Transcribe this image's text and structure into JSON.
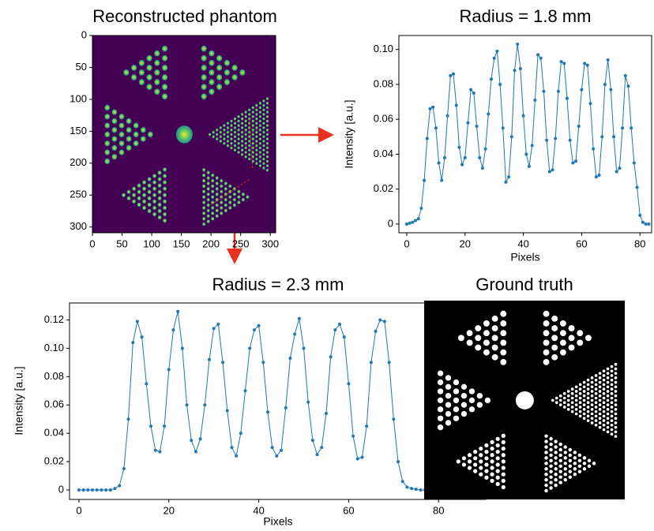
{
  "chart_data": [
    {
      "type": "image",
      "title": "Reconstructed phantom",
      "colormap": "viridis",
      "xlim": [
        0,
        309
      ],
      "ylim": [
        309,
        0
      ],
      "xticks": [
        0,
        50,
        100,
        150,
        200,
        250,
        300
      ],
      "yticks": [
        0,
        50,
        100,
        150,
        200,
        250,
        300
      ]
    },
    {
      "type": "line",
      "title": "Radius = 1.8 mm",
      "xlabel": "Pixels",
      "ylabel": "Intensity [a.u.]",
      "xlim": [
        -2.7,
        84
      ],
      "ylim": [
        -0.005,
        0.108
      ],
      "xticks": [
        0,
        20,
        40,
        60,
        80
      ],
      "yticks": [
        0,
        0.02,
        0.04,
        0.06,
        0.08,
        {
          "value": 0.1,
          "label": "0.10"
        }
      ],
      "series": [
        {
          "color": "#1f77b4",
          "x": [
            0,
            1,
            2,
            3,
            4,
            5,
            6,
            7,
            8,
            9,
            10,
            11,
            12,
            13,
            14,
            15,
            16,
            17,
            18,
            19,
            20,
            21,
            22,
            23,
            24,
            25,
            26,
            27,
            28,
            29,
            30,
            31,
            32,
            33,
            34,
            35,
            36,
            37,
            38,
            39,
            40,
            41,
            42,
            43,
            44,
            45,
            46,
            47,
            48,
            49,
            50,
            51,
            52,
            53,
            54,
            55,
            56,
            57,
            58,
            59,
            60,
            61,
            62,
            63,
            64,
            65,
            66,
            67,
            68,
            69,
            70,
            71,
            72,
            73,
            74,
            75,
            76,
            77,
            78,
            79,
            80,
            81,
            82,
            83
          ],
          "values": [
            0,
            0.0005,
            0.001,
            0.002,
            0.003,
            0.009,
            0.025,
            0.049,
            0.066,
            0.067,
            0.055,
            0.035,
            0.025,
            0.038,
            0.062,
            0.085,
            0.086,
            0.068,
            0.044,
            0.034,
            0.038,
            0.058,
            0.077,
            0.075,
            0.056,
            0.038,
            0.032,
            0.043,
            0.063,
            0.083,
            0.095,
            0.099,
            0.08,
            0.055,
            0.024,
            0.027,
            0.05,
            0.088,
            0.103,
            0.089,
            0.062,
            0.04,
            0.033,
            0.045,
            0.071,
            0.097,
            0.095,
            0.076,
            0.048,
            0.03,
            0.031,
            0.049,
            0.076,
            0.093,
            0.092,
            0.072,
            0.048,
            0.035,
            0.036,
            0.056,
            0.077,
            0.092,
            0.091,
            0.069,
            0.043,
            0.027,
            0.028,
            0.05,
            0.08,
            0.094,
            0.077,
            0.05,
            0.03,
            0.032,
            0.055,
            0.085,
            0.079,
            0.055,
            0.035,
            0.021,
            0.005,
            0.001,
            0,
            0
          ]
        }
      ]
    },
    {
      "type": "line",
      "title": "Radius = 2.3 mm",
      "xlabel": "Pixels",
      "ylabel": "Intensity [a.u.]",
      "xlim": [
        -2.1,
        90.5
      ],
      "ylim": [
        -0.0067,
        0.132
      ],
      "xticks": [
        0,
        20,
        40,
        60,
        80
      ],
      "yticks": [
        0,
        0.02,
        0.04,
        0.06,
        0.08,
        {
          "value": 0.1,
          "label": "0.10"
        },
        0.12
      ],
      "series": [
        {
          "color": "#1f77b4",
          "x": [
            0,
            1,
            2,
            3,
            4,
            5,
            6,
            7,
            8,
            9,
            10,
            11,
            12,
            13,
            14,
            15,
            16,
            17,
            18,
            19,
            20,
            21,
            22,
            23,
            24,
            25,
            26,
            27,
            28,
            29,
            30,
            31,
            32,
            33,
            34,
            35,
            36,
            37,
            38,
            39,
            40,
            41,
            42,
            43,
            44,
            45,
            46,
            47,
            48,
            49,
            50,
            51,
            52,
            53,
            54,
            55,
            56,
            57,
            58,
            59,
            60,
            61,
            62,
            63,
            64,
            65,
            66,
            67,
            68,
            69,
            70,
            71,
            72,
            73,
            74,
            75,
            76,
            77,
            78,
            79,
            80,
            81,
            82,
            83,
            84,
            85,
            86
          ],
          "values": [
            0,
            0,
            0,
            0,
            0,
            0,
            0,
            0,
            0.001,
            0.003,
            0.015,
            0.05,
            0.104,
            0.119,
            0.108,
            0.075,
            0.045,
            0.028,
            0.027,
            0.045,
            0.085,
            0.113,
            0.126,
            0.1,
            0.06,
            0.035,
            0.027,
            0.036,
            0.06,
            0.092,
            0.114,
            0.117,
            0.09,
            0.056,
            0.03,
            0.024,
            0.04,
            0.07,
            0.1,
            0.113,
            0.116,
            0.09,
            0.055,
            0.03,
            0.024,
            0.028,
            0.058,
            0.093,
            0.11,
            0.121,
            0.1,
            0.062,
            0.035,
            0.025,
            0.03,
            0.054,
            0.094,
            0.113,
            0.117,
            0.108,
            0.075,
            0.038,
            0.022,
            0.023,
            0.045,
            0.09,
            0.112,
            0.12,
            0.119,
            0.09,
            0.05,
            0.02,
            0.006,
            0.002,
            0.001,
            0.0005,
            0,
            0,
            0,
            0,
            0,
            0,
            0,
            0,
            0,
            0,
            0
          ]
        }
      ]
    },
    {
      "type": "image",
      "title": "Ground truth",
      "colormap": "gray"
    }
  ]
}
